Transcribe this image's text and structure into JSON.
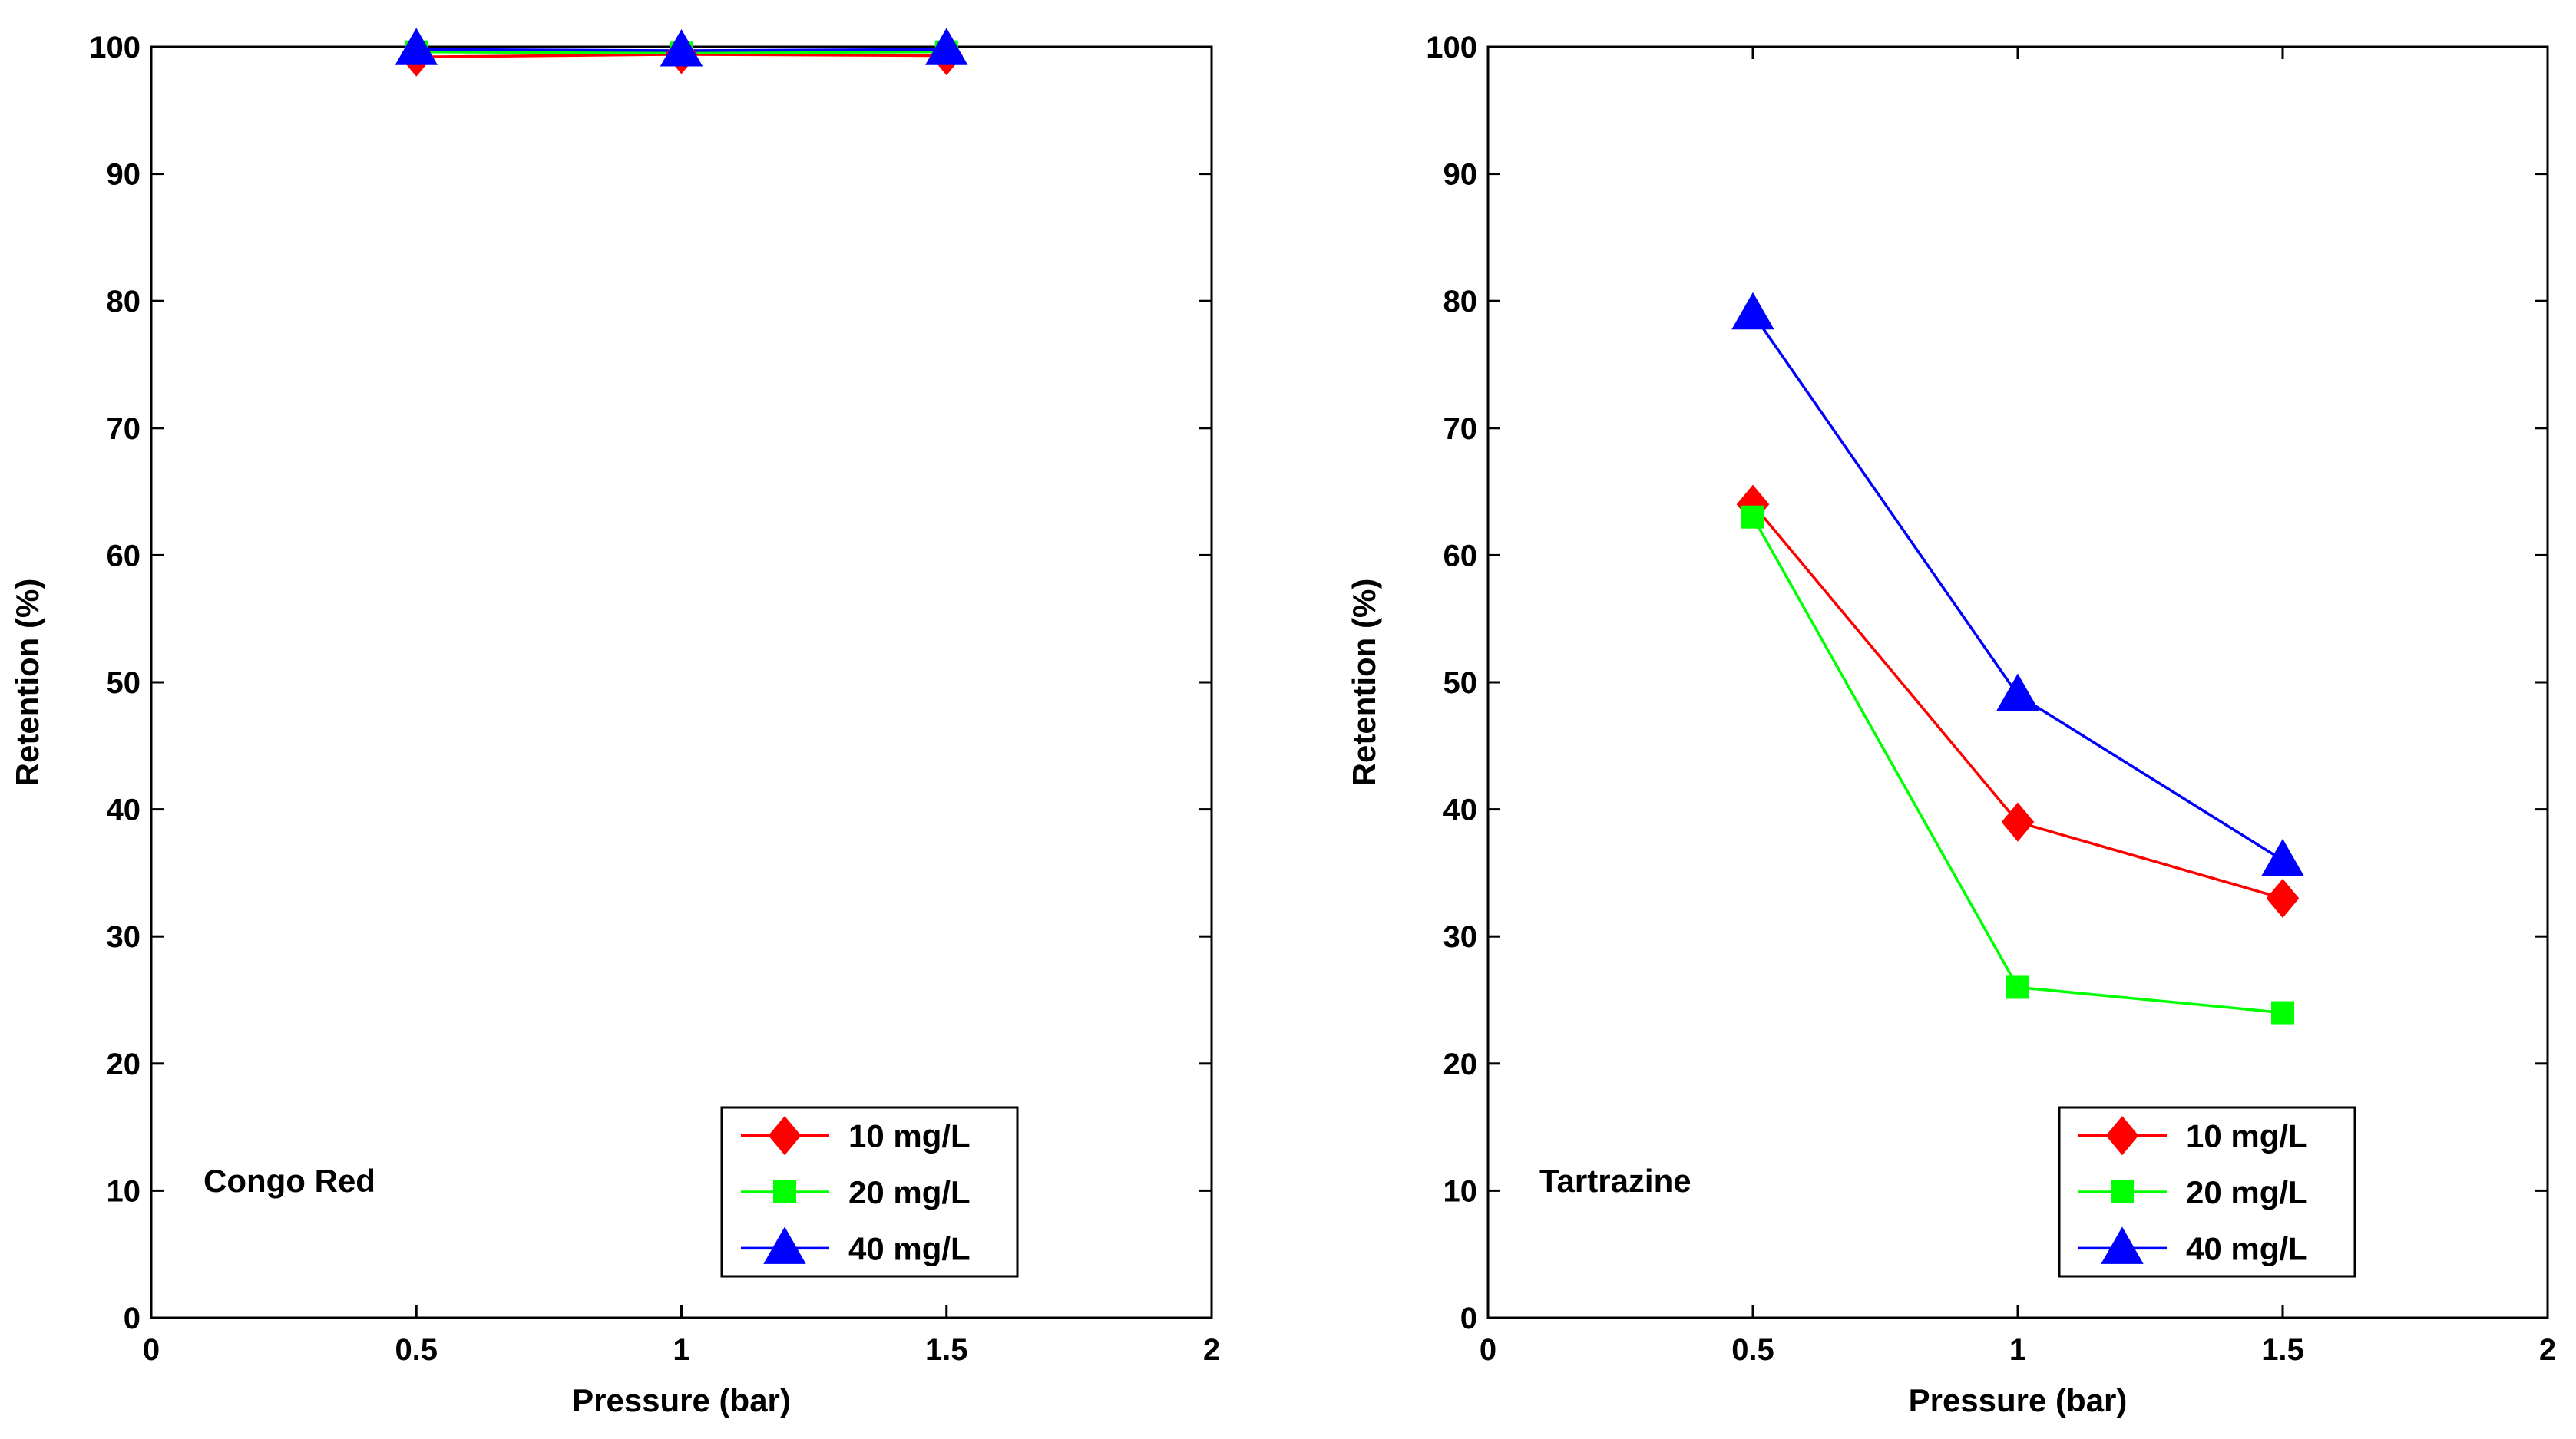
{
  "chart_data": [
    {
      "type": "line",
      "title": "",
      "annotation": "Congo Red",
      "xlabel": "Pressure (bar)",
      "ylabel": "Retention (%)",
      "xlim": [
        0,
        2
      ],
      "ylim": [
        0,
        100
      ],
      "xticks": [
        "0",
        "0.5",
        "1",
        "1.5",
        "2"
      ],
      "yticks": [
        "0",
        "10",
        "20",
        "30",
        "40",
        "50",
        "60",
        "70",
        "80",
        "90",
        "100"
      ],
      "grid": false,
      "legend_position": "bottom-right",
      "x": [
        0.5,
        1,
        1.5
      ],
      "series": [
        {
          "name": "10 mg/L",
          "values": [
            99.2,
            99.4,
            99.3
          ],
          "color": "#ff0000",
          "marker": "diamond"
        },
        {
          "name": "20 mg/L",
          "values": [
            99.6,
            99.5,
            99.6
          ],
          "color": "#00ff00",
          "marker": "square"
        },
        {
          "name": "40 mg/L",
          "values": [
            99.8,
            99.7,
            99.8
          ],
          "color": "#0000ff",
          "marker": "triangle"
        }
      ]
    },
    {
      "type": "line",
      "title": "",
      "annotation": "Tartrazine",
      "xlabel": "Pressure (bar)",
      "ylabel": "Retention (%)",
      "xlim": [
        0,
        2
      ],
      "ylim": [
        0,
        100
      ],
      "xticks": [
        "0",
        "0.5",
        "1",
        "1.5",
        "2"
      ],
      "yticks": [
        "0",
        "10",
        "20",
        "30",
        "40",
        "50",
        "60",
        "70",
        "80",
        "90",
        "100"
      ],
      "grid": false,
      "legend_position": "bottom-right",
      "x": [
        0.5,
        1,
        1.5
      ],
      "series": [
        {
          "name": "10 mg/L",
          "values": [
            64,
            39,
            33
          ],
          "color": "#ff0000",
          "marker": "diamond"
        },
        {
          "name": "20 mg/L",
          "values": [
            63,
            26,
            24
          ],
          "color": "#00ff00",
          "marker": "square"
        },
        {
          "name": "40 mg/L",
          "values": [
            79,
            49,
            36
          ],
          "color": "#0000ff",
          "marker": "triangle"
        }
      ]
    }
  ]
}
